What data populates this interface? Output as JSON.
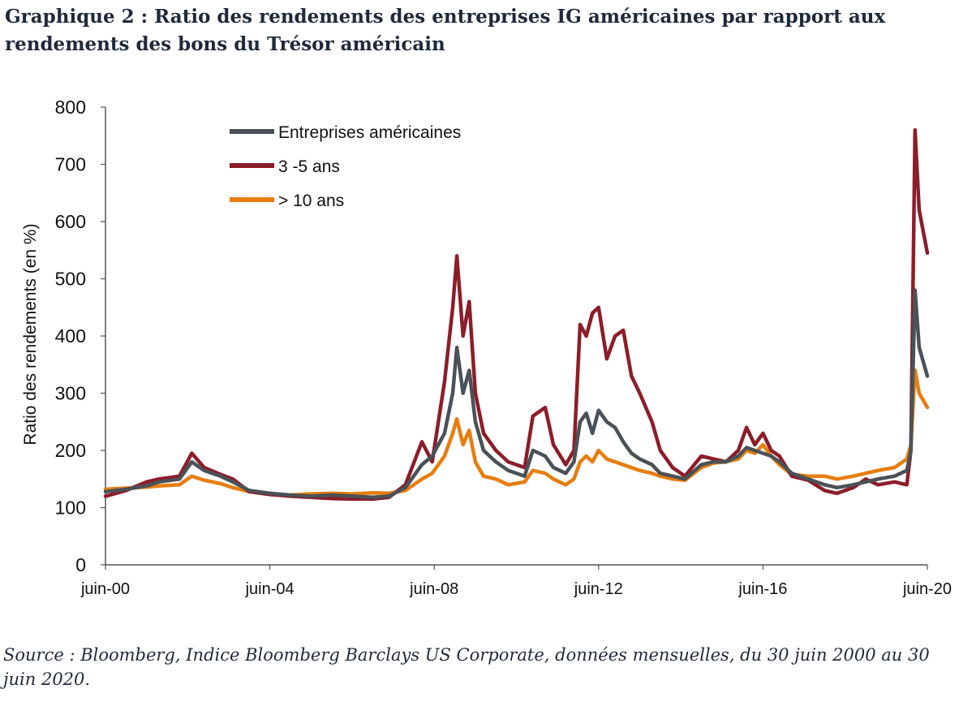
{
  "title": "Graphique 2 : Ratio des rendements des entreprises IG américaines par rapport aux rendements des bons du Trésor américain",
  "source": "Source : Bloomberg, Indice Bloomberg Barclays US Corporate, données mensuelles, du 30 juin 2000 au 30 juin 2020.",
  "chart_data": {
    "type": "line",
    "ylabel": "Ratio des rendements (en %)",
    "ylim": [
      0,
      800
    ],
    "yticks": [
      "0",
      "100",
      "200",
      "300",
      "400",
      "500",
      "600",
      "700",
      "800"
    ],
    "xlim": [
      2000.5,
      2020.5
    ],
    "xticks": [
      {
        "label": "juin-00",
        "value": 2000.5
      },
      {
        "label": "juin-04",
        "value": 2004.5
      },
      {
        "label": "juin-08",
        "value": 2008.5
      },
      {
        "label": "juin-12",
        "value": 2012.5
      },
      {
        "label": "juin-16",
        "value": 2016.5
      },
      {
        "label": "juin-20",
        "value": 2020.5
      }
    ],
    "legend_position": "top-left",
    "series": [
      {
        "name": "Entreprises américaines",
        "color": "#4a5258",
        "points": [
          [
            2000.5,
            128
          ],
          [
            2001.0,
            132
          ],
          [
            2001.5,
            138
          ],
          [
            2001.8,
            145
          ],
          [
            2002.3,
            150
          ],
          [
            2002.6,
            180
          ],
          [
            2002.9,
            165
          ],
          [
            2003.3,
            155
          ],
          [
            2003.6,
            145
          ],
          [
            2004.0,
            130
          ],
          [
            2004.5,
            125
          ],
          [
            2005.0,
            122
          ],
          [
            2005.5,
            120
          ],
          [
            2006.0,
            122
          ],
          [
            2006.5,
            120
          ],
          [
            2007.0,
            118
          ],
          [
            2007.4,
            120
          ],
          [
            2007.8,
            135
          ],
          [
            2008.2,
            175
          ],
          [
            2008.45,
            190
          ],
          [
            2008.75,
            230
          ],
          [
            2008.95,
            300
          ],
          [
            2009.05,
            380
          ],
          [
            2009.2,
            300
          ],
          [
            2009.35,
            340
          ],
          [
            2009.5,
            250
          ],
          [
            2009.7,
            200
          ],
          [
            2010.0,
            180
          ],
          [
            2010.3,
            165
          ],
          [
            2010.7,
            155
          ],
          [
            2010.9,
            200
          ],
          [
            2011.2,
            190
          ],
          [
            2011.4,
            170
          ],
          [
            2011.7,
            160
          ],
          [
            2011.9,
            180
          ],
          [
            2012.05,
            250
          ],
          [
            2012.2,
            265
          ],
          [
            2012.35,
            230
          ],
          [
            2012.5,
            270
          ],
          [
            2012.7,
            250
          ],
          [
            2012.9,
            240
          ],
          [
            2013.1,
            215
          ],
          [
            2013.3,
            195
          ],
          [
            2013.5,
            185
          ],
          [
            2013.8,
            175
          ],
          [
            2014.0,
            160
          ],
          [
            2014.3,
            155
          ],
          [
            2014.6,
            150
          ],
          [
            2015.0,
            175
          ],
          [
            2015.3,
            180
          ],
          [
            2015.6,
            180
          ],
          [
            2015.9,
            190
          ],
          [
            2016.1,
            205
          ],
          [
            2016.3,
            200
          ],
          [
            2016.5,
            195
          ],
          [
            2016.7,
            190
          ],
          [
            2016.9,
            180
          ],
          [
            2017.2,
            160
          ],
          [
            2017.6,
            150
          ],
          [
            2018.0,
            140
          ],
          [
            2018.3,
            135
          ],
          [
            2018.7,
            140
          ],
          [
            2019.0,
            145
          ],
          [
            2019.3,
            150
          ],
          [
            2019.7,
            155
          ],
          [
            2020.0,
            165
          ],
          [
            2020.1,
            200
          ],
          [
            2020.2,
            480
          ],
          [
            2020.3,
            380
          ],
          [
            2020.5,
            330
          ]
        ]
      },
      {
        "name": "3 -5 ans",
        "color": "#8c1d2a",
        "points": [
          [
            2000.5,
            120
          ],
          [
            2001.0,
            130
          ],
          [
            2001.5,
            145
          ],
          [
            2001.8,
            150
          ],
          [
            2002.3,
            155
          ],
          [
            2002.6,
            195
          ],
          [
            2002.9,
            170
          ],
          [
            2003.3,
            158
          ],
          [
            2003.6,
            150
          ],
          [
            2004.0,
            128
          ],
          [
            2004.5,
            123
          ],
          [
            2005.0,
            120
          ],
          [
            2005.5,
            118
          ],
          [
            2006.0,
            116
          ],
          [
            2006.5,
            115
          ],
          [
            2007.0,
            115
          ],
          [
            2007.4,
            118
          ],
          [
            2007.8,
            140
          ],
          [
            2008.2,
            215
          ],
          [
            2008.45,
            180
          ],
          [
            2008.75,
            320
          ],
          [
            2008.95,
            450
          ],
          [
            2009.05,
            540
          ],
          [
            2009.2,
            400
          ],
          [
            2009.35,
            460
          ],
          [
            2009.5,
            300
          ],
          [
            2009.7,
            230
          ],
          [
            2010.0,
            200
          ],
          [
            2010.3,
            180
          ],
          [
            2010.7,
            170
          ],
          [
            2010.9,
            260
          ],
          [
            2011.2,
            275
          ],
          [
            2011.4,
            210
          ],
          [
            2011.7,
            175
          ],
          [
            2011.9,
            200
          ],
          [
            2012.05,
            420
          ],
          [
            2012.2,
            400
          ],
          [
            2012.35,
            440
          ],
          [
            2012.5,
            450
          ],
          [
            2012.7,
            360
          ],
          [
            2012.9,
            400
          ],
          [
            2013.1,
            410
          ],
          [
            2013.3,
            330
          ],
          [
            2013.5,
            300
          ],
          [
            2013.8,
            250
          ],
          [
            2014.0,
            200
          ],
          [
            2014.3,
            170
          ],
          [
            2014.6,
            155
          ],
          [
            2015.0,
            190
          ],
          [
            2015.3,
            185
          ],
          [
            2015.6,
            180
          ],
          [
            2015.9,
            200
          ],
          [
            2016.1,
            240
          ],
          [
            2016.3,
            210
          ],
          [
            2016.5,
            230
          ],
          [
            2016.7,
            200
          ],
          [
            2016.9,
            190
          ],
          [
            2017.2,
            155
          ],
          [
            2017.6,
            148
          ],
          [
            2018.0,
            130
          ],
          [
            2018.3,
            125
          ],
          [
            2018.7,
            135
          ],
          [
            2019.0,
            150
          ],
          [
            2019.3,
            140
          ],
          [
            2019.7,
            145
          ],
          [
            2020.0,
            140
          ],
          [
            2020.1,
            200
          ],
          [
            2020.2,
            760
          ],
          [
            2020.3,
            620
          ],
          [
            2020.5,
            545
          ]
        ]
      },
      {
        "name": "> 10 ans",
        "color": "#e67e10",
        "points": [
          [
            2000.5,
            132
          ],
          [
            2001.0,
            134
          ],
          [
            2001.5,
            136
          ],
          [
            2001.8,
            138
          ],
          [
            2002.3,
            140
          ],
          [
            2002.6,
            155
          ],
          [
            2002.9,
            148
          ],
          [
            2003.3,
            142
          ],
          [
            2003.6,
            135
          ],
          [
            2004.0,
            128
          ],
          [
            2004.5,
            124
          ],
          [
            2005.0,
            122
          ],
          [
            2005.5,
            124
          ],
          [
            2006.0,
            125
          ],
          [
            2006.5,
            124
          ],
          [
            2007.0,
            126
          ],
          [
            2007.4,
            125
          ],
          [
            2007.8,
            130
          ],
          [
            2008.2,
            150
          ],
          [
            2008.45,
            160
          ],
          [
            2008.75,
            190
          ],
          [
            2008.95,
            230
          ],
          [
            2009.05,
            255
          ],
          [
            2009.2,
            210
          ],
          [
            2009.35,
            235
          ],
          [
            2009.5,
            180
          ],
          [
            2009.7,
            155
          ],
          [
            2010.0,
            150
          ],
          [
            2010.3,
            140
          ],
          [
            2010.7,
            145
          ],
          [
            2010.9,
            165
          ],
          [
            2011.2,
            160
          ],
          [
            2011.4,
            150
          ],
          [
            2011.7,
            140
          ],
          [
            2011.9,
            150
          ],
          [
            2012.05,
            180
          ],
          [
            2012.2,
            190
          ],
          [
            2012.35,
            180
          ],
          [
            2012.5,
            200
          ],
          [
            2012.7,
            185
          ],
          [
            2012.9,
            180
          ],
          [
            2013.1,
            175
          ],
          [
            2013.3,
            170
          ],
          [
            2013.5,
            165
          ],
          [
            2013.8,
            160
          ],
          [
            2014.0,
            155
          ],
          [
            2014.3,
            150
          ],
          [
            2014.6,
            148
          ],
          [
            2015.0,
            170
          ],
          [
            2015.3,
            178
          ],
          [
            2015.6,
            180
          ],
          [
            2015.9,
            185
          ],
          [
            2016.1,
            200
          ],
          [
            2016.3,
            195
          ],
          [
            2016.5,
            210
          ],
          [
            2016.7,
            190
          ],
          [
            2016.9,
            175
          ],
          [
            2017.2,
            158
          ],
          [
            2017.6,
            155
          ],
          [
            2018.0,
            155
          ],
          [
            2018.3,
            150
          ],
          [
            2018.7,
            155
          ],
          [
            2019.0,
            160
          ],
          [
            2019.3,
            165
          ],
          [
            2019.7,
            170
          ],
          [
            2020.0,
            185
          ],
          [
            2020.1,
            210
          ],
          [
            2020.2,
            340
          ],
          [
            2020.3,
            300
          ],
          [
            2020.5,
            275
          ]
        ]
      }
    ]
  }
}
